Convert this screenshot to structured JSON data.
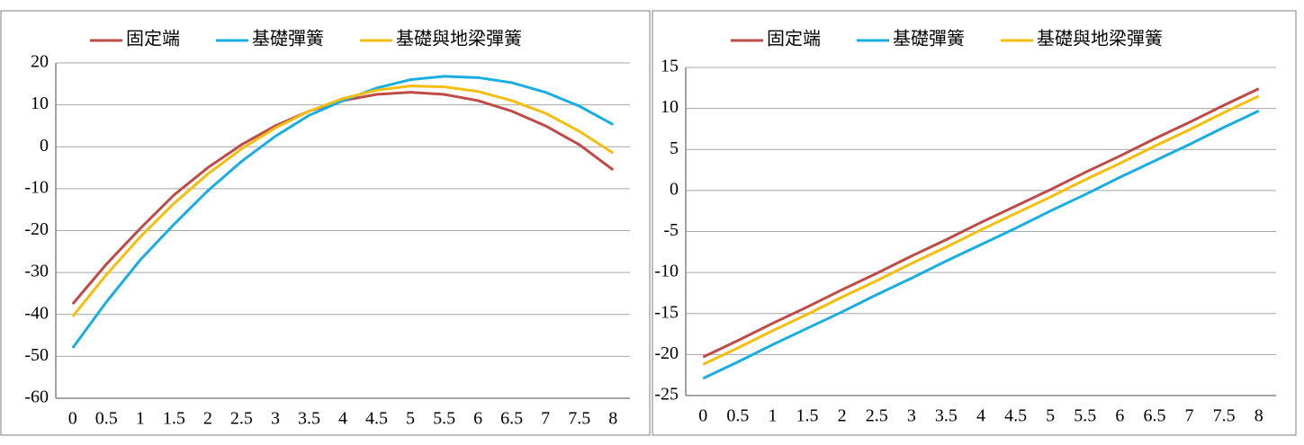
{
  "chart_data": [
    {
      "type": "line",
      "categories": [
        "0",
        "0.5",
        "1",
        "1.5",
        "2",
        "2.5",
        "3",
        "3.5",
        "4",
        "4.5",
        "5",
        "5.5",
        "6",
        "6.5",
        "7",
        "7.5",
        "8"
      ],
      "series": [
        {
          "name": "固定端",
          "color": "#be4b48",
          "values": [
            -37.5,
            -28,
            -19.5,
            -11.5,
            -5,
            0.5,
            5,
            8.5,
            11,
            12.5,
            13,
            12.5,
            11,
            8.5,
            5,
            0.5,
            -5.5
          ]
        },
        {
          "name": "基礎彈簧",
          "color": "#1aaee0",
          "values": [
            -48,
            -37,
            -27,
            -18.5,
            -10.5,
            -3.5,
            2.5,
            7.5,
            11,
            14,
            16,
            16.8,
            16.5,
            15.3,
            13,
            9.7,
            5.3
          ]
        },
        {
          "name": "基礎與地梁彈簧",
          "color": "#f5be0f",
          "values": [
            -40.5,
            -30.5,
            -21.5,
            -13.5,
            -6.5,
            -0.5,
            4.5,
            8.5,
            11.5,
            13.5,
            14.5,
            14.3,
            13.2,
            11,
            8,
            3.7,
            -1.5
          ]
        }
      ],
      "ylim": [
        -60,
        20
      ],
      "yticks": [
        -60,
        -50,
        -40,
        -30,
        -20,
        -10,
        0,
        10,
        20
      ],
      "grid": true,
      "legend": "top"
    },
    {
      "type": "line",
      "categories": [
        "0",
        "0.5",
        "1",
        "1.5",
        "2",
        "2.5",
        "3",
        "3.5",
        "4",
        "4.5",
        "5",
        "5.5",
        "6",
        "6.5",
        "7",
        "7.5",
        "8"
      ],
      "series": [
        {
          "name": "固定端",
          "color": "#be4b48",
          "values": [
            -20.3,
            -18.3,
            -16.2,
            -14.2,
            -12.1,
            -10.1,
            -8.0,
            -6.0,
            -3.9,
            -1.9,
            0.1,
            2.2,
            4.2,
            6.3,
            8.3,
            10.4,
            12.4
          ]
        },
        {
          "name": "基礎彈簧",
          "color": "#1aaee0",
          "values": [
            -22.9,
            -20.9,
            -18.8,
            -16.8,
            -14.8,
            -12.7,
            -10.7,
            -8.6,
            -6.6,
            -4.6,
            -2.5,
            -0.5,
            1.6,
            3.6,
            5.6,
            7.7,
            9.7
          ]
        },
        {
          "name": "基礎與地梁彈簧",
          "color": "#f5be0f",
          "values": [
            -21.2,
            -19.2,
            -17.1,
            -15.1,
            -13.0,
            -11.0,
            -8.9,
            -6.9,
            -4.8,
            -2.8,
            -0.8,
            1.3,
            3.3,
            5.4,
            7.4,
            9.5,
            11.5
          ]
        }
      ],
      "ylim": [
        -25,
        15
      ],
      "yticks": [
        -25,
        -20,
        -15,
        -10,
        -5,
        0,
        5,
        10,
        15
      ],
      "grid": true,
      "legend": "top"
    }
  ]
}
